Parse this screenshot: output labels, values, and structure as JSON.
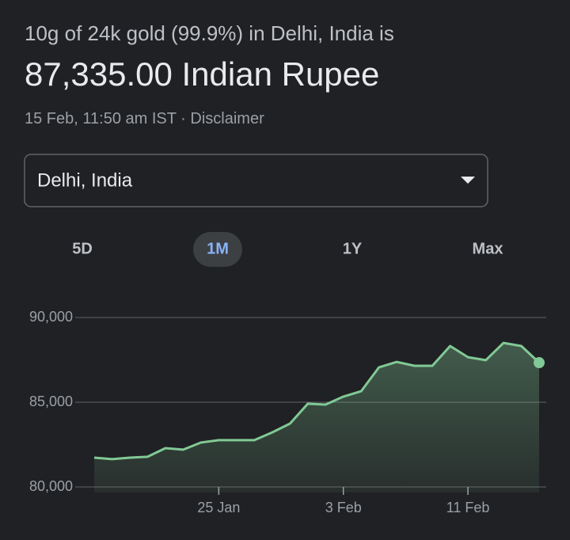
{
  "header": {
    "title": "10g of 24k gold (99.9%) in Delhi, India is",
    "price": "87,335.00 Indian Rupee",
    "timestamp": "15 Feb, 11:50 am IST",
    "separator": "·",
    "disclaimer": "Disclaimer"
  },
  "location": "Delhi, India",
  "ranges": [
    "5D",
    "1M",
    "1Y",
    "Max"
  ],
  "selected_range": 1,
  "chart_data": {
    "type": "line",
    "categories": [
      null,
      null,
      null,
      null,
      null,
      null,
      null,
      "25 Jan",
      null,
      null,
      null,
      null,
      null,
      null,
      "3 Feb",
      null,
      null,
      null,
      null,
      null,
      null,
      "11 Feb",
      null,
      null,
      null,
      null
    ],
    "series": [
      {
        "name": "Price",
        "color": "#81c995",
        "values": [
          81730,
          81640,
          81730,
          81780,
          82290,
          82200,
          82620,
          82760,
          82760,
          82760,
          83220,
          83740,
          84910,
          84860,
          85330,
          85650,
          87060,
          87380,
          87150,
          87150,
          88320,
          87660,
          87480,
          88500,
          88320,
          87335
        ]
      }
    ],
    "ylim": [
      80000,
      90000
    ],
    "yticks": [
      {
        "value": 80000,
        "label": "80,000"
      },
      {
        "value": 85000,
        "label": "85,000"
      },
      {
        "value": 90000,
        "label": "90,000"
      }
    ],
    "grid": true
  }
}
